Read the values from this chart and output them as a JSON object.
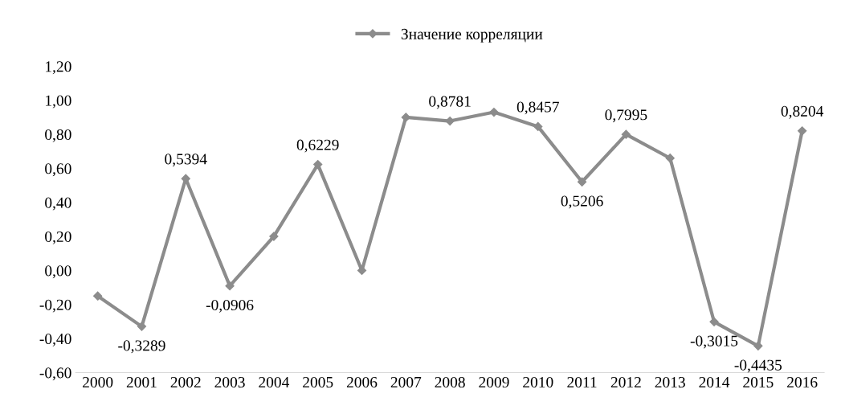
{
  "chart_data": {
    "type": "line",
    "categories": [
      "2000",
      "2001",
      "2002",
      "2003",
      "2004",
      "2005",
      "2006",
      "2007",
      "2008",
      "2009",
      "2010",
      "2011",
      "2012",
      "2013",
      "2014",
      "2015",
      "2016"
    ],
    "series": [
      {
        "name": "Значение корреляции",
        "color": "#8c8c8c",
        "values": [
          -0.15,
          -0.3289,
          0.5394,
          -0.0906,
          0.2,
          0.6229,
          0.0,
          0.9,
          0.8781,
          0.93,
          0.8457,
          0.5206,
          0.7995,
          0.66,
          -0.3015,
          -0.4435,
          0.8204
        ],
        "value_labels": [
          null,
          "-0,3289",
          "0,5394",
          "-0,0906",
          null,
          "0,6229",
          null,
          null,
          "0,8781",
          null,
          "0,8457",
          "0,5206",
          "0,7995",
          null,
          "-0,3015",
          "-0,4435",
          "0,8204"
        ]
      }
    ],
    "ylim": [
      -0.6,
      1.2
    ],
    "yticks": [
      {
        "value": -0.6,
        "label": "-0,60"
      },
      {
        "value": -0.4,
        "label": "-0,40"
      },
      {
        "value": -0.2,
        "label": "-0,20"
      },
      {
        "value": 0,
        "label": "0,00"
      },
      {
        "value": 0.2,
        "label": "0,20"
      },
      {
        "value": 0.4,
        "label": "0,40"
      },
      {
        "value": 0.6,
        "label": "0,60"
      },
      {
        "value": 0.8,
        "label": "0,80"
      },
      {
        "value": 1.0,
        "label": "1,00"
      },
      {
        "value": 1.2,
        "label": "1,20"
      }
    ],
    "legend": "top",
    "marker": "diamond",
    "line_style": "solid",
    "grid": false
  }
}
